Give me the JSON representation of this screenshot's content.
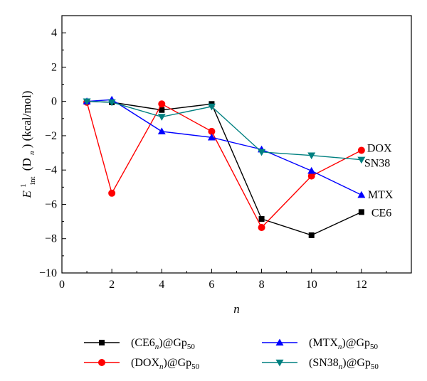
{
  "chart_data": {
    "type": "line",
    "xlabel": "n",
    "ylabel": {
      "main": "E",
      "sup": "1",
      "sub": "int",
      "rest_open": "(D",
      "rest_sub": "n",
      "rest_close": ") (kcal/mol)"
    },
    "xlim": [
      0,
      14
    ],
    "ylim": [
      -10,
      5
    ],
    "x_ticks": [
      0,
      2,
      4,
      6,
      8,
      10,
      12
    ],
    "x_tick_labels": [
      "0",
      "2",
      "4",
      "6",
      "8",
      "10",
      "12"
    ],
    "y_ticks": [
      -10,
      -8,
      -6,
      -4,
      -2,
      0,
      2,
      4
    ],
    "y_tick_labels": [
      "−10",
      "−8",
      "−6",
      "−4",
      "−2",
      "0",
      "2",
      "4"
    ],
    "grid": false,
    "legend_position": "bottom",
    "series": [
      {
        "key": "CE6",
        "legend_prefix": "(CE6",
        "legend_sub": "n",
        "legend_suffix": ")@Gp",
        "legend_sub2": "50",
        "end_label": "CE6",
        "color": "#000000",
        "marker": "square",
        "x": [
          1,
          2,
          4,
          6,
          8,
          10,
          12
        ],
        "y": [
          0.0,
          -0.05,
          -0.5,
          -0.15,
          -6.85,
          -7.8,
          -6.45
        ]
      },
      {
        "key": "DOX",
        "legend_prefix": "(DOX",
        "legend_sub": "n",
        "legend_suffix": ")@Gp",
        "legend_sub2": "50",
        "end_label": "DOX",
        "color": "#ff0000",
        "marker": "circle",
        "x": [
          1,
          2,
          4,
          6,
          8,
          10,
          12
        ],
        "y": [
          -0.05,
          -5.35,
          -0.15,
          -1.75,
          -7.35,
          -4.35,
          -2.85
        ]
      },
      {
        "key": "MTX",
        "legend_prefix": "(MTX",
        "legend_sub": "n",
        "legend_suffix": ")@Gp",
        "legend_sub2": "50",
        "end_label": "MTX",
        "color": "#0000ff",
        "marker": "triangle-up",
        "x": [
          1,
          2,
          4,
          6,
          8,
          10,
          12
        ],
        "y": [
          0.0,
          0.1,
          -1.75,
          -2.1,
          -2.8,
          -4.05,
          -5.45
        ]
      },
      {
        "key": "SN38",
        "legend_prefix": "(SN38",
        "legend_sub": "n",
        "legend_suffix": ")@Gp",
        "legend_sub2": "50",
        "end_label": "SN38",
        "color": "#008080",
        "marker": "triangle-down",
        "x": [
          1,
          2,
          4,
          6,
          8,
          10,
          12
        ],
        "y": [
          0.0,
          -0.05,
          -0.9,
          -0.3,
          -2.95,
          -3.15,
          -3.4
        ]
      }
    ]
  }
}
